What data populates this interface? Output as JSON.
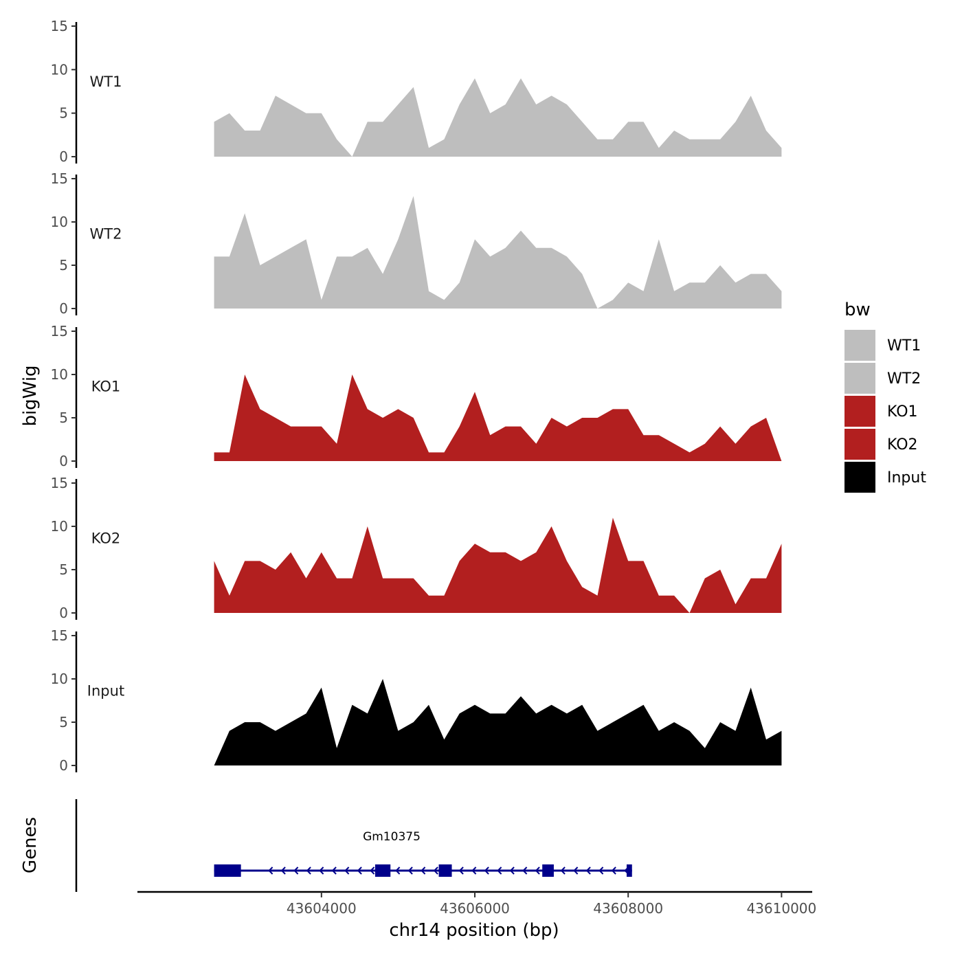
{
  "chart_data": {
    "type": "area",
    "region": {
      "chromosome": "chr14",
      "start": 43602600,
      "end": 43610000
    },
    "xlabel": "chr14 position (bp)",
    "ylabel": "bigWig",
    "genes_axis_label": "Genes",
    "xlim": [
      43601600,
      43610400
    ],
    "x_ticks": [
      43604000,
      43606000,
      43608000,
      43610000
    ],
    "x_tick_labels": [
      "43604000",
      "43606000",
      "43608000",
      "43610000"
    ],
    "ylim": [
      0,
      15
    ],
    "y_ticks": [
      0,
      5,
      10,
      15
    ],
    "y_tick_labels": [
      "0",
      "5",
      "10",
      "15"
    ],
    "legend": {
      "title": "bw",
      "entries": [
        {
          "label": "WT1",
          "color": "#bebebe"
        },
        {
          "label": "WT2",
          "color": "#bebebe"
        },
        {
          "label": "KO1",
          "color": "#b21f1f"
        },
        {
          "label": "KO2",
          "color": "#b21f1f"
        },
        {
          "label": "Input",
          "color": "#000000"
        }
      ]
    },
    "x": [
      43602600,
      43602800,
      43603000,
      43603200,
      43603400,
      43603600,
      43603800,
      43604000,
      43604200,
      43604400,
      43604600,
      43604800,
      43605000,
      43605200,
      43605400,
      43605600,
      43605800,
      43606000,
      43606200,
      43606400,
      43606600,
      43606800,
      43607000,
      43607200,
      43607400,
      43607600,
      43607800,
      43608000,
      43608200,
      43608400,
      43608600,
      43608800,
      43609000,
      43609200,
      43609400,
      43609600,
      43609800,
      43610000
    ],
    "series": [
      {
        "name": "WT1",
        "color": "#bebebe",
        "values": [
          4,
          5,
          3,
          3,
          7,
          6,
          5,
          5,
          2,
          0,
          4,
          4,
          6,
          8,
          1,
          2,
          6,
          9,
          5,
          6,
          9,
          6,
          7,
          6,
          4,
          2,
          2,
          4,
          4,
          1,
          3,
          2,
          2,
          2,
          4,
          7,
          3,
          1
        ]
      },
      {
        "name": "WT2",
        "color": "#bebebe",
        "values": [
          6,
          6,
          11,
          5,
          6,
          7,
          8,
          1,
          6,
          6,
          7,
          4,
          8,
          13,
          2,
          1,
          3,
          8,
          6,
          7,
          9,
          7,
          7,
          6,
          4,
          0,
          1,
          3,
          2,
          8,
          2,
          3,
          3,
          5,
          3,
          4,
          4,
          2
        ]
      },
      {
        "name": "KO1",
        "color": "#b21f1f",
        "values": [
          1,
          1,
          10,
          6,
          5,
          4,
          4,
          4,
          2,
          10,
          6,
          5,
          6,
          5,
          1,
          1,
          4,
          8,
          3,
          4,
          4,
          2,
          5,
          4,
          5,
          5,
          6,
          6,
          3,
          3,
          2,
          1,
          2,
          4,
          2,
          4,
          5,
          0
        ]
      },
      {
        "name": "KO2",
        "color": "#b21f1f",
        "values": [
          6,
          2,
          6,
          6,
          5,
          7,
          4,
          7,
          4,
          4,
          10,
          4,
          4,
          4,
          2,
          2,
          6,
          8,
          7,
          7,
          6,
          7,
          10,
          6,
          3,
          2,
          11,
          6,
          6,
          2,
          2,
          0,
          4,
          5,
          1,
          4,
          4,
          8
        ]
      },
      {
        "name": "Input",
        "color": "#000000",
        "values": [
          0,
          4,
          5,
          5,
          4,
          5,
          6,
          9,
          2,
          7,
          6,
          10,
          4,
          5,
          7,
          3,
          6,
          7,
          6,
          6,
          8,
          6,
          7,
          6,
          7,
          4,
          5,
          6,
          7,
          4,
          5,
          4,
          2,
          5,
          4,
          9,
          3,
          4
        ]
      }
    ],
    "gene": {
      "name": "Gm10375",
      "color": "#00008b",
      "strand": "-",
      "start": 43602600,
      "end": 43608050,
      "exons": [
        [
          43602600,
          43602950
        ],
        [
          43604700,
          43604900
        ],
        [
          43605530,
          43605700
        ],
        [
          43606880,
          43607030
        ],
        [
          43607980,
          43608050
        ]
      ]
    }
  }
}
